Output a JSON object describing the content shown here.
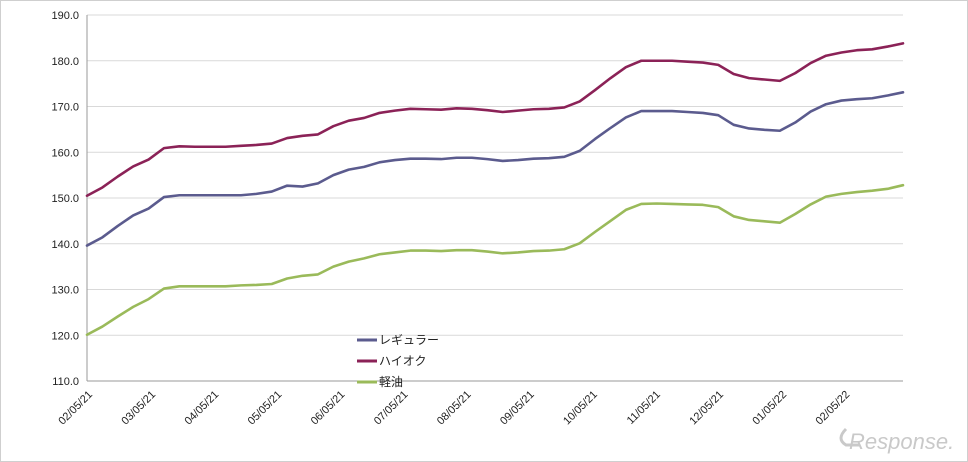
{
  "chart_data": {
    "type": "line",
    "title": "",
    "xlabel": "",
    "ylabel": "",
    "ylim": [
      110,
      190
    ],
    "y_ticks": [
      "110.0",
      "120.0",
      "130.0",
      "140.0",
      "150.0",
      "160.0",
      "170.0",
      "180.0",
      "190.0"
    ],
    "x_tick_labels": [
      "02/05/21",
      "03/05/21",
      "04/05/21",
      "05/05/21",
      "06/05/21",
      "07/05/21",
      "08/05/21",
      "09/05/21",
      "10/05/21",
      "11/05/21",
      "12/05/21",
      "01/05/22",
      "02/05/22"
    ],
    "grid": "horizontal",
    "legend_position": "bottom-center",
    "series": [
      {
        "name": "レギュラー",
        "color": "#5b5b8e",
        "values": [
          139.6,
          141.4,
          143.9,
          146.2,
          147.7,
          150.2,
          150.6,
          150.6,
          150.6,
          150.6,
          150.6,
          150.9,
          151.4,
          152.7,
          152.5,
          153.2,
          155.0,
          156.2,
          156.8,
          157.8,
          158.3,
          158.6,
          158.6,
          158.5,
          158.8,
          158.8,
          158.5,
          158.1,
          158.3,
          158.6,
          158.7,
          159.0,
          160.3,
          162.9,
          165.3,
          167.6,
          169.0,
          169.0,
          169.0,
          168.8,
          168.6,
          168.1,
          166.0,
          165.2,
          164.9,
          164.7,
          166.5,
          168.9,
          170.5,
          171.3,
          171.6,
          171.8,
          172.4,
          173.1
        ]
      },
      {
        "name": "ハイオク",
        "color": "#8b2257",
        "values": [
          150.5,
          152.3,
          154.7,
          156.9,
          158.4,
          160.9,
          161.3,
          161.2,
          161.2,
          161.2,
          161.4,
          161.6,
          161.9,
          163.1,
          163.6,
          163.9,
          165.7,
          166.9,
          167.5,
          168.6,
          169.1,
          169.5,
          169.4,
          169.3,
          169.6,
          169.5,
          169.2,
          168.8,
          169.1,
          169.4,
          169.5,
          169.8,
          171.1,
          173.6,
          176.2,
          178.6,
          180.0,
          180.0,
          180.0,
          179.8,
          179.6,
          179.1,
          177.1,
          176.2,
          175.9,
          175.6,
          177.3,
          179.5,
          181.1,
          181.8,
          182.3,
          182.5,
          183.1,
          183.8
        ]
      },
      {
        "name": "軽油",
        "color": "#9aba5a",
        "values": [
          120.1,
          121.9,
          124.1,
          126.2,
          127.9,
          130.2,
          130.7,
          130.7,
          130.7,
          130.7,
          130.9,
          131.0,
          131.2,
          132.4,
          133.0,
          133.3,
          135.0,
          136.1,
          136.8,
          137.7,
          138.1,
          138.5,
          138.5,
          138.4,
          138.6,
          138.6,
          138.3,
          137.9,
          138.1,
          138.4,
          138.5,
          138.8,
          140.1,
          142.6,
          145.0,
          147.4,
          148.7,
          148.8,
          148.7,
          148.6,
          148.5,
          148.0,
          146.0,
          145.2,
          144.9,
          144.6,
          146.5,
          148.6,
          150.3,
          150.9,
          151.3,
          151.6,
          152.0,
          152.8
        ]
      }
    ]
  },
  "watermark": "Response."
}
